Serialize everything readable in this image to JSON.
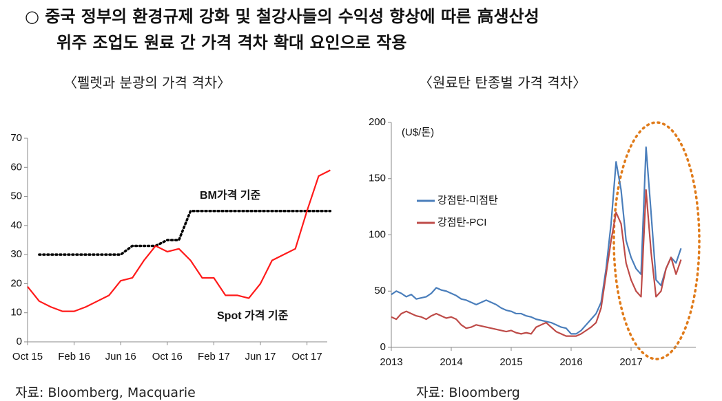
{
  "header": {
    "line1": "○ 중국 정부의 환경규제 강화 및 철강사들의 수익성 향상에 따른 高생산성",
    "line2": "위주 조업도 원료 간 가격 격차 확대 요인으로 작용"
  },
  "sources": [
    "자료: Bloomberg, Macquarie",
    "자료: Bloomberg"
  ],
  "chart_data": [
    {
      "type": "line",
      "title": "〈펠렛과 분광의 가격 격차〉",
      "categories": [
        "Oct 15",
        null,
        null,
        null,
        "Feb 16",
        null,
        null,
        null,
        "Jun 16",
        null,
        null,
        null,
        "Oct 16",
        null,
        null,
        null,
        "Feb 17",
        null,
        null,
        null,
        "Jun 17",
        null,
        null,
        null,
        "Oct 17",
        null,
        null
      ],
      "series": [
        {
          "name": "BM가격 기준",
          "color": "#000000",
          "line_style": "dotted",
          "values": [
            null,
            30,
            30,
            30,
            30,
            30,
            30,
            30,
            30,
            33,
            33,
            33,
            35,
            35,
            45,
            45,
            45,
            45,
            45,
            45,
            45,
            45,
            45,
            45,
            45,
            45,
            45
          ]
        },
        {
          "name": "Spot 가격 기준",
          "color": "#ff1a1a",
          "line_style": "solid",
          "values": [
            19,
            14,
            12,
            10.5,
            10.5,
            12,
            14,
            16,
            21,
            22,
            28,
            33,
            31,
            32,
            28,
            22,
            22,
            16,
            16,
            15,
            20,
            28,
            30,
            32,
            45,
            57,
            59
          ]
        }
      ],
      "ylim": [
        0,
        70
      ],
      "yticks": [
        0,
        10,
        20,
        30,
        40,
        50,
        60,
        70
      ],
      "grid": false
    },
    {
      "type": "line",
      "title": "〈원료탄 탄종별 가격 격차〉",
      "y_label": "(U$/톤)",
      "categories": [
        "2013",
        null,
        null,
        null,
        null,
        null,
        null,
        null,
        null,
        null,
        null,
        null,
        "2014",
        null,
        null,
        null,
        null,
        null,
        null,
        null,
        null,
        null,
        null,
        null,
        "2015",
        null,
        null,
        null,
        null,
        null,
        null,
        null,
        null,
        null,
        null,
        null,
        "2016",
        null,
        null,
        null,
        null,
        null,
        null,
        null,
        null,
        null,
        null,
        null,
        "2017",
        null,
        null,
        null,
        null,
        null,
        null,
        null,
        null,
        null,
        null
      ],
      "series": [
        {
          "name": "강점탄-미점탄",
          "color": "#4a7ebb",
          "line_style": "solid",
          "values": [
            47,
            50,
            48,
            45,
            47,
            43,
            44,
            45,
            48,
            53,
            51,
            50,
            48,
            46,
            43,
            42,
            40,
            38,
            40,
            42,
            40,
            38,
            35,
            33,
            32,
            30,
            30,
            28,
            27,
            25,
            24,
            23,
            22,
            20,
            18,
            17,
            12,
            12,
            15,
            20,
            25,
            30,
            40,
            70,
            110,
            165,
            140,
            95,
            80,
            70,
            65,
            178,
            120,
            60,
            55,
            70,
            80,
            75,
            88
          ]
        },
        {
          "name": "강점탄-PCI",
          "color": "#be4b48",
          "line_style": "solid",
          "values": [
            27,
            25,
            30,
            32,
            30,
            28,
            27,
            25,
            28,
            30,
            28,
            26,
            27,
            25,
            20,
            17,
            18,
            20,
            19,
            18,
            17,
            16,
            15,
            14,
            15,
            13,
            12,
            13,
            12,
            18,
            20,
            22,
            18,
            14,
            12,
            10,
            10,
            10,
            12,
            15,
            18,
            22,
            35,
            65,
            95,
            120,
            110,
            75,
            60,
            50,
            45,
            140,
            85,
            45,
            50,
            70,
            80,
            65,
            78
          ]
        }
      ],
      "ylim": [
        0,
        200
      ],
      "yticks": [
        0,
        50,
        100,
        150,
        200
      ],
      "grid": false
    }
  ]
}
